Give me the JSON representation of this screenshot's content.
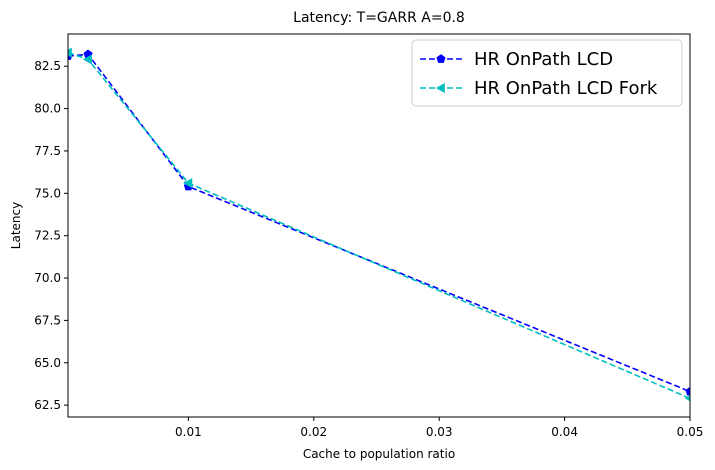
{
  "chart_data": {
    "type": "line",
    "title": "Latency: T=GARR A=0.8",
    "xlabel": "Cache to population ratio",
    "ylabel": "Latency",
    "xlim": [
      0.0004,
      0.05
    ],
    "ylim": [
      61.8,
      84.4
    ],
    "xticks": [
      0.01,
      0.02,
      0.03,
      0.04,
      0.05
    ],
    "xtick_labels": [
      "0.01",
      "0.02",
      "0.03",
      "0.04",
      "0.05"
    ],
    "yticks": [
      62.5,
      65.0,
      67.5,
      70.0,
      72.5,
      75.0,
      77.5,
      80.0,
      82.5
    ],
    "ytick_labels": [
      "62.5",
      "65.0",
      "67.5",
      "70.0",
      "72.5",
      "75.0",
      "77.5",
      "80.0",
      "82.5"
    ],
    "grid": false,
    "legend_position": "top-right",
    "series": [
      {
        "name": "HR OnPath LCD",
        "color": "#0000ff",
        "marker": "pentagon",
        "linestyle": "dashed",
        "x": [
          0.0004,
          0.002,
          0.01,
          0.05
        ],
        "y": [
          83.1,
          83.2,
          75.4,
          63.3
        ]
      },
      {
        "name": "HR OnPath LCD Fork",
        "color": "#00bfbf",
        "marker": "triangle-left",
        "linestyle": "dashed",
        "x": [
          0.0004,
          0.002,
          0.01,
          0.05
        ],
        "y": [
          83.3,
          82.9,
          75.6,
          62.9
        ]
      }
    ]
  }
}
